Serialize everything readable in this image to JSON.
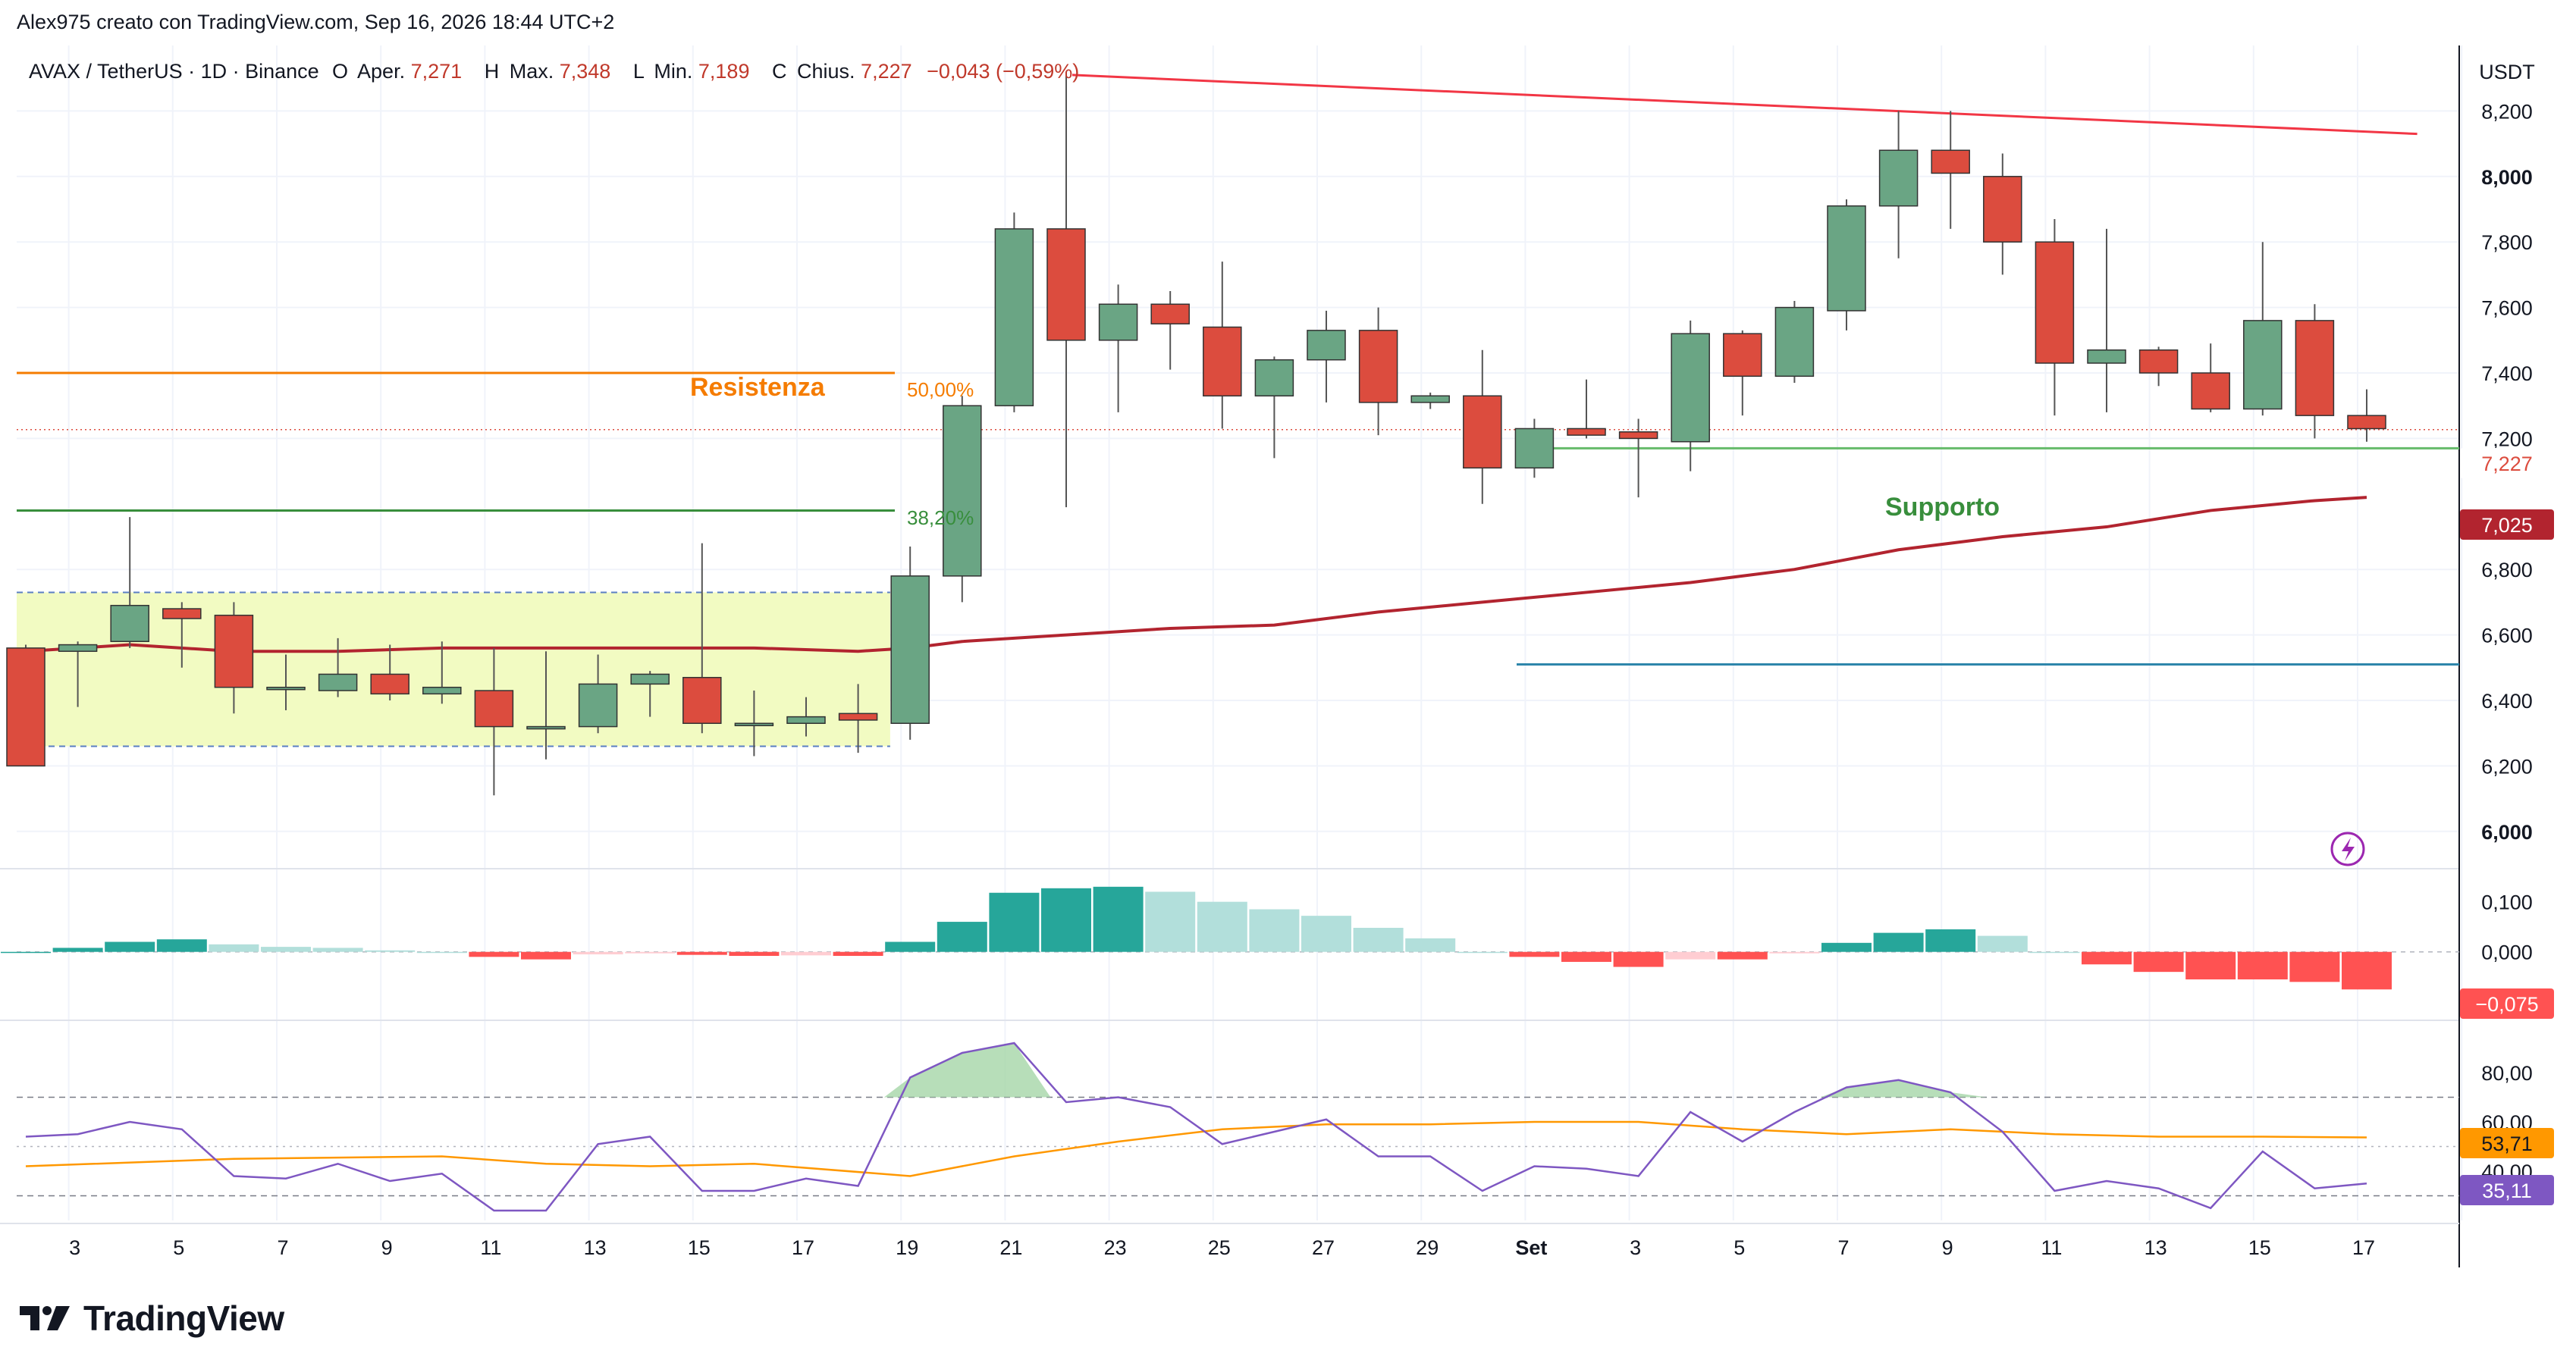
{
  "header": {
    "credit": "Alex975 creato con TradingView.com, Sep 16, 2026 18:44 UTC+2"
  },
  "legend": {
    "symbol": "AVAX / TetherUS · 1D · Binance",
    "o_label": "O",
    "open_label": "Aper.",
    "open": "7,271",
    "h_label": "H",
    "high_label": "Max.",
    "high": "7,348",
    "l_label": "L",
    "low_label": "Min.",
    "low": "7,189",
    "c_label": "C",
    "close_label": "Chius.",
    "close": "7,227",
    "change": "−0,043 (−0,59%)"
  },
  "currency": "USDT",
  "annotations": {
    "resistance": "Resistenza",
    "support": "Supporto",
    "fib50": "50,00%",
    "fib382": "38,20%"
  },
  "price_badges": {
    "last": "7,227",
    "ma": "7,025",
    "macd": "−0,075",
    "rsi_ma": "53,71",
    "rsi": "35,11"
  },
  "x_ticks": [
    "3",
    "5",
    "7",
    "9",
    "11",
    "13",
    "15",
    "17",
    "19",
    "21",
    "23",
    "25",
    "27",
    "29",
    "Set",
    "3",
    "5",
    "7",
    "9",
    "11",
    "13",
    "15",
    "17"
  ],
  "y_ticks_price": [
    "8,200",
    "8,000",
    "7,800",
    "7,600",
    "7,400",
    "7,200",
    "6,800",
    "6,600",
    "6,400",
    "6,200",
    "6,000"
  ],
  "y_ticks_macd": [
    "0,100",
    "0,000"
  ],
  "y_ticks_rsi": [
    "80,00",
    "60,00",
    "40,00"
  ],
  "brand": "TradingView",
  "colors": {
    "up": "#6aa584",
    "down": "#dc4c3e",
    "resistance": "#f57c00",
    "support_line": "#388e3c",
    "trend": "#f23645",
    "ma": "#b2242f",
    "blue_line": "#2e86ab",
    "range_box": "#f2fbc2",
    "macd_up": "#26a69a",
    "macd_down": "#ff5252",
    "rsi": "#7e57c2",
    "rsi_ma": "#ff9800"
  },
  "chart_data": {
    "type": "candlestick",
    "price_scale": {
      "ylim": [
        5.9,
        8.4
      ]
    },
    "candles": [
      {
        "x": 0,
        "o": 6.56,
        "h": 6.57,
        "l": 6.2,
        "c": 6.2
      },
      {
        "x": 1,
        "o": 6.55,
        "h": 6.58,
        "l": 6.38,
        "c": 6.57
      },
      {
        "x": 2,
        "o": 6.58,
        "h": 6.96,
        "l": 6.56,
        "c": 6.69
      },
      {
        "x": 3,
        "o": 6.68,
        "h": 6.7,
        "l": 6.5,
        "c": 6.65
      },
      {
        "x": 4,
        "o": 6.66,
        "h": 6.7,
        "l": 6.36,
        "c": 6.44
      },
      {
        "x": 5,
        "o": 6.44,
        "h": 6.54,
        "l": 6.37,
        "c": 6.44
      },
      {
        "x": 6,
        "o": 6.43,
        "h": 6.59,
        "l": 6.41,
        "c": 6.48
      },
      {
        "x": 7,
        "o": 6.48,
        "h": 6.57,
        "l": 6.4,
        "c": 6.42
      },
      {
        "x": 8,
        "o": 6.42,
        "h": 6.58,
        "l": 6.39,
        "c": 6.44
      },
      {
        "x": 9,
        "o": 6.43,
        "h": 6.56,
        "l": 6.11,
        "c": 6.32
      },
      {
        "x": 10,
        "o": 6.32,
        "h": 6.55,
        "l": 6.22,
        "c": 6.32
      },
      {
        "x": 11,
        "o": 6.32,
        "h": 6.54,
        "l": 6.3,
        "c": 6.45
      },
      {
        "x": 12,
        "o": 6.45,
        "h": 6.49,
        "l": 6.35,
        "c": 6.48
      },
      {
        "x": 13,
        "o": 6.47,
        "h": 6.88,
        "l": 6.3,
        "c": 6.33
      },
      {
        "x": 14,
        "o": 6.33,
        "h": 6.43,
        "l": 6.23,
        "c": 6.33
      },
      {
        "x": 15,
        "o": 6.33,
        "h": 6.41,
        "l": 6.29,
        "c": 6.35
      },
      {
        "x": 16,
        "o": 6.36,
        "h": 6.45,
        "l": 6.24,
        "c": 6.34
      },
      {
        "x": 17,
        "o": 6.33,
        "h": 6.87,
        "l": 6.28,
        "c": 6.78
      },
      {
        "x": 18,
        "o": 6.78,
        "h": 7.33,
        "l": 6.7,
        "c": 7.3
      },
      {
        "x": 19,
        "o": 7.3,
        "h": 7.89,
        "l": 7.28,
        "c": 7.84
      },
      {
        "x": 20,
        "o": 7.84,
        "h": 8.32,
        "l": 6.99,
        "c": 7.5
      },
      {
        "x": 21,
        "o": 7.5,
        "h": 7.67,
        "l": 7.28,
        "c": 7.61
      },
      {
        "x": 22,
        "o": 7.61,
        "h": 7.65,
        "l": 7.41,
        "c": 7.55
      },
      {
        "x": 23,
        "o": 7.54,
        "h": 7.74,
        "l": 7.23,
        "c": 7.33
      },
      {
        "x": 24,
        "o": 7.33,
        "h": 7.45,
        "l": 7.14,
        "c": 7.44
      },
      {
        "x": 25,
        "o": 7.44,
        "h": 7.59,
        "l": 7.31,
        "c": 7.53
      },
      {
        "x": 26,
        "o": 7.53,
        "h": 7.6,
        "l": 7.21,
        "c": 7.31
      },
      {
        "x": 27,
        "o": 7.31,
        "h": 7.34,
        "l": 7.29,
        "c": 7.33
      },
      {
        "x": 28,
        "o": 7.33,
        "h": 7.47,
        "l": 7.0,
        "c": 7.11
      },
      {
        "x": 29,
        "o": 7.11,
        "h": 7.26,
        "l": 7.08,
        "c": 7.23
      },
      {
        "x": 30,
        "o": 7.23,
        "h": 7.38,
        "l": 7.2,
        "c": 7.21
      },
      {
        "x": 31,
        "o": 7.22,
        "h": 7.26,
        "l": 7.02,
        "c": 7.2
      },
      {
        "x": 32,
        "o": 7.19,
        "h": 7.56,
        "l": 7.1,
        "c": 7.52
      },
      {
        "x": 33,
        "o": 7.52,
        "h": 7.53,
        "l": 7.27,
        "c": 7.39
      },
      {
        "x": 34,
        "o": 7.39,
        "h": 7.62,
        "l": 7.37,
        "c": 7.6
      },
      {
        "x": 35,
        "o": 7.59,
        "h": 7.93,
        "l": 7.53,
        "c": 7.91
      },
      {
        "x": 36,
        "o": 7.91,
        "h": 8.2,
        "l": 7.75,
        "c": 8.08
      },
      {
        "x": 37,
        "o": 8.08,
        "h": 8.2,
        "l": 7.84,
        "c": 8.01
      },
      {
        "x": 38,
        "o": 8.0,
        "h": 8.07,
        "l": 7.7,
        "c": 7.8
      },
      {
        "x": 39,
        "o": 7.8,
        "h": 7.87,
        "l": 7.27,
        "c": 7.43
      },
      {
        "x": 40,
        "o": 7.43,
        "h": 7.84,
        "l": 7.28,
        "c": 7.47
      },
      {
        "x": 41,
        "o": 7.47,
        "h": 7.48,
        "l": 7.36,
        "c": 7.4
      },
      {
        "x": 42,
        "o": 7.4,
        "h": 7.49,
        "l": 7.28,
        "c": 7.29
      },
      {
        "x": 43,
        "o": 7.29,
        "h": 7.8,
        "l": 7.27,
        "c": 7.56
      },
      {
        "x": 44,
        "o": 7.56,
        "h": 7.61,
        "l": 7.2,
        "c": 7.27
      },
      {
        "x": 45,
        "o": 7.27,
        "h": 7.35,
        "l": 7.19,
        "c": 7.23
      }
    ],
    "ma": [
      [
        0,
        6.55
      ],
      [
        2,
        6.57
      ],
      [
        4,
        6.55
      ],
      [
        6,
        6.55
      ],
      [
        8,
        6.56
      ],
      [
        10,
        6.56
      ],
      [
        12,
        6.56
      ],
      [
        14,
        6.56
      ],
      [
        16,
        6.55
      ],
      [
        17,
        6.56
      ],
      [
        18,
        6.58
      ],
      [
        19,
        6.59
      ],
      [
        20,
        6.6
      ],
      [
        22,
        6.62
      ],
      [
        24,
        6.63
      ],
      [
        26,
        6.67
      ],
      [
        28,
        6.7
      ],
      [
        30,
        6.73
      ],
      [
        32,
        6.76
      ],
      [
        34,
        6.8
      ],
      [
        36,
        6.86
      ],
      [
        38,
        6.9
      ],
      [
        40,
        6.93
      ],
      [
        42,
        6.98
      ],
      [
        44,
        7.01
      ],
      [
        45,
        7.02
      ]
    ],
    "resistance_level": 7.4,
    "support_level_382": 6.98,
    "support_level": 7.17,
    "blue_level": 6.51,
    "trendline": [
      [
        20,
        8.31
      ],
      [
        46,
        8.13
      ]
    ],
    "range_box": {
      "x": [
        0,
        16.5
      ],
      "y": [
        6.26,
        6.73
      ]
    },
    "macd_hist": [
      [
        0,
        0.0
      ],
      [
        1,
        0.008
      ],
      [
        2,
        0.02
      ],
      [
        3,
        0.025
      ],
      [
        4,
        0.015
      ],
      [
        5,
        0.01
      ],
      [
        6,
        0.008
      ],
      [
        7,
        0.003
      ],
      [
        8,
        0.0
      ],
      [
        9,
        -0.01
      ],
      [
        10,
        -0.015
      ],
      [
        11,
        -0.005
      ],
      [
        12,
        -0.003
      ],
      [
        13,
        -0.006
      ],
      [
        14,
        -0.008
      ],
      [
        15,
        -0.007
      ],
      [
        16,
        -0.008
      ],
      [
        17,
        0.02
      ],
      [
        18,
        0.06
      ],
      [
        19,
        0.118
      ],
      [
        20,
        0.127
      ],
      [
        21,
        0.13
      ],
      [
        22,
        0.12
      ],
      [
        23,
        0.1
      ],
      [
        24,
        0.085
      ],
      [
        25,
        0.072
      ],
      [
        26,
        0.048
      ],
      [
        27,
        0.027
      ],
      [
        28,
        0.0
      ],
      [
        29,
        -0.01
      ],
      [
        30,
        -0.02
      ],
      [
        31,
        -0.03
      ],
      [
        32,
        -0.015
      ],
      [
        33,
        -0.015
      ],
      [
        34,
        -0.003
      ],
      [
        35,
        0.018
      ],
      [
        36,
        0.038
      ],
      [
        37,
        0.045
      ],
      [
        38,
        0.032
      ],
      [
        39,
        0.0
      ],
      [
        40,
        -0.025
      ],
      [
        41,
        -0.04
      ],
      [
        42,
        -0.055
      ],
      [
        43,
        -0.055
      ],
      [
        44,
        -0.06
      ],
      [
        45,
        -0.075
      ]
    ],
    "macd_scale": {
      "ylim": [
        -0.12,
        0.16
      ]
    },
    "rsi": [
      [
        0,
        54
      ],
      [
        1,
        55
      ],
      [
        2,
        60
      ],
      [
        3,
        57
      ],
      [
        4,
        38
      ],
      [
        5,
        37
      ],
      [
        6,
        43
      ],
      [
        7,
        36
      ],
      [
        8,
        39
      ],
      [
        9,
        24
      ],
      [
        10,
        24
      ],
      [
        11,
        51
      ],
      [
        12,
        54
      ],
      [
        13,
        32
      ],
      [
        14,
        32
      ],
      [
        15,
        37
      ],
      [
        16,
        34
      ],
      [
        17,
        78
      ],
      [
        18,
        88
      ],
      [
        19,
        92
      ],
      [
        20,
        68
      ],
      [
        21,
        70
      ],
      [
        22,
        66
      ],
      [
        23,
        51
      ],
      [
        24,
        56
      ],
      [
        25,
        61
      ],
      [
        26,
        46
      ],
      [
        27,
        46
      ],
      [
        28,
        32
      ],
      [
        29,
        42
      ],
      [
        30,
        41
      ],
      [
        31,
        38
      ],
      [
        32,
        64
      ],
      [
        33,
        52
      ],
      [
        34,
        64
      ],
      [
        35,
        74
      ],
      [
        36,
        77
      ],
      [
        37,
        72
      ],
      [
        38,
        56
      ],
      [
        39,
        32
      ],
      [
        40,
        36
      ],
      [
        41,
        33
      ],
      [
        42,
        25
      ],
      [
        43,
        48
      ],
      [
        44,
        33
      ],
      [
        45,
        35
      ]
    ],
    "rsi_ma": [
      [
        0,
        42
      ],
      [
        4,
        45
      ],
      [
        8,
        46
      ],
      [
        10,
        43
      ],
      [
        12,
        42
      ],
      [
        14,
        43
      ],
      [
        17,
        38
      ],
      [
        19,
        46
      ],
      [
        21,
        52
      ],
      [
        23,
        57
      ],
      [
        25,
        59
      ],
      [
        27,
        59
      ],
      [
        29,
        60
      ],
      [
        31,
        60
      ],
      [
        33,
        57
      ],
      [
        35,
        55
      ],
      [
        37,
        57
      ],
      [
        39,
        55
      ],
      [
        41,
        54
      ],
      [
        43,
        54
      ],
      [
        45,
        53.71
      ]
    ],
    "rsi_scale": {
      "ylim": [
        20,
        100
      ]
    }
  }
}
